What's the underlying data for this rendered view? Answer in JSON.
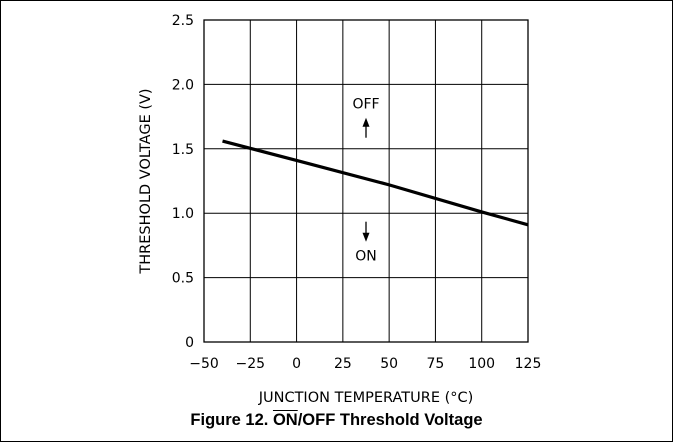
{
  "chart_data": {
    "type": "line",
    "title": "",
    "xlabel": "JUNCTION TEMPERATURE (°C)",
    "ylabel": "THRESHOLD VOLTAGE (V)",
    "xlim": [
      -50,
      125
    ],
    "ylim": [
      0,
      2.5
    ],
    "x_ticks": [
      -50,
      -25,
      0,
      25,
      50,
      75,
      100,
      125
    ],
    "y_ticks": [
      0,
      0.5,
      1.0,
      1.5,
      2.0,
      2.5
    ],
    "x_tick_labels": [
      "−50",
      "−25",
      "0",
      "25",
      "50",
      "75",
      "100",
      "125"
    ],
    "y_tick_labels": [
      "0",
      "0.5",
      "1.0",
      "1.5",
      "2.0",
      "2.5"
    ],
    "grid": true,
    "series": [
      {
        "x": [
          -40,
          0,
          50,
          100,
          125
        ],
        "y": [
          1.56,
          1.41,
          1.22,
          1.01,
          0.91
        ]
      }
    ],
    "annotations": [
      {
        "text": "OFF",
        "x": 37.5,
        "y": 1.85,
        "arrow": "up"
      },
      {
        "text": "ON",
        "x": 37.5,
        "y": 0.67,
        "arrow": "down"
      }
    ]
  },
  "caption": {
    "prefix": "Figure 12. ",
    "overlined": "ON",
    "suffix": "/OFF Threshold Voltage"
  },
  "colors": {
    "ink": "#000000",
    "background": "#ffffff"
  }
}
